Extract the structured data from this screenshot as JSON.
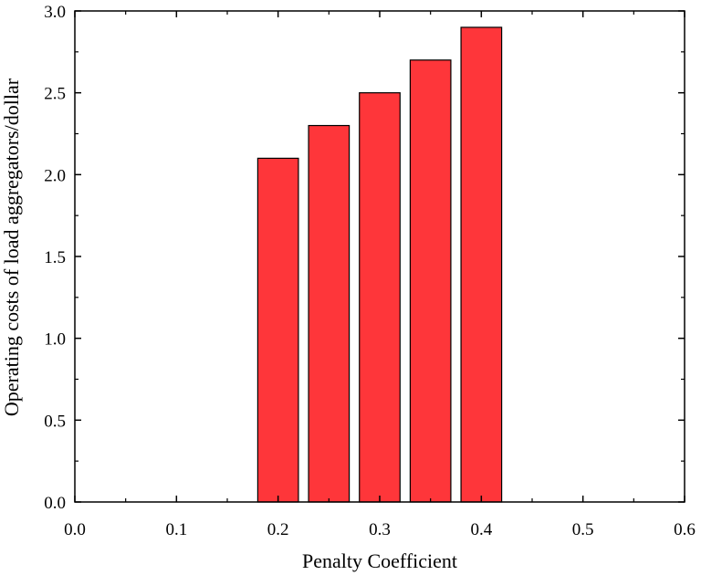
{
  "chart_data": {
    "type": "bar",
    "title": "",
    "xlabel": "Penalty Coefficient",
    "ylabel": "Operating costs of load aggregators/dollar",
    "x": [
      0.2,
      0.25,
      0.3,
      0.35,
      0.4
    ],
    "values": [
      2.1,
      2.3,
      2.5,
      2.7,
      2.9
    ],
    "bar_width": 0.04,
    "xlim": [
      0.0,
      0.6
    ],
    "ylim": [
      0.0,
      3.0
    ],
    "xticks": [
      "0.0",
      "0.1",
      "0.2",
      "0.3",
      "0.4",
      "0.5",
      "0.6"
    ],
    "yticks": [
      "0.0",
      "0.5",
      "1.0",
      "1.5",
      "2.0",
      "2.5",
      "3.0"
    ],
    "bar_color": "#fe363a",
    "grid": false,
    "legend": false
  }
}
